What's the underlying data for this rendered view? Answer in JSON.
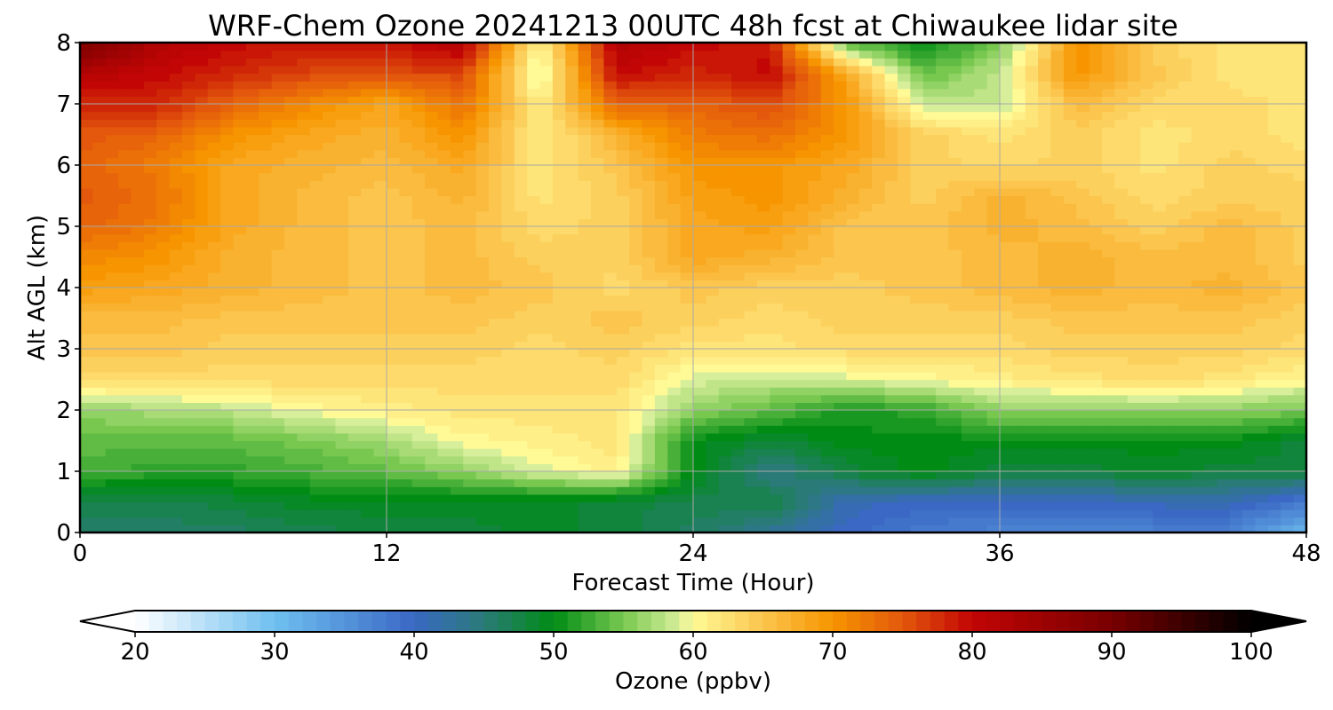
{
  "chart_data": {
    "type": "heatmap",
    "title": "WRF-Chem Ozone  20241213 00UTC 48h fcst at Chiwaukee lidar site",
    "xlabel": "Forecast Time (Hour)",
    "ylabel": "Alt AGL (km)",
    "xlim": [
      0,
      48
    ],
    "ylim": [
      0,
      8
    ],
    "xticks": [
      0,
      12,
      24,
      36,
      48
    ],
    "yticks": [
      0,
      1,
      2,
      3,
      4,
      5,
      6,
      7,
      8
    ],
    "grid": true,
    "x_hours": [
      0,
      3,
      6,
      9,
      12,
      15,
      18,
      21,
      24,
      27,
      30,
      33,
      36,
      39,
      42,
      45,
      48
    ],
    "alt_km": [
      0,
      0.5,
      1,
      1.5,
      2,
      2.5,
      3,
      3.5,
      4,
      4.5,
      5,
      5.5,
      6,
      6.5,
      7,
      7.5,
      8
    ],
    "values": [
      [
        46,
        46,
        46,
        47,
        48,
        48,
        49,
        48,
        46,
        43,
        40,
        38,
        37,
        37,
        37,
        37,
        31
      ],
      [
        47,
        47,
        48,
        49,
        49,
        49,
        49,
        48,
        47,
        48,
        41,
        40,
        40,
        40,
        41,
        41,
        38
      ],
      [
        53,
        52,
        52,
        53,
        54,
        56,
        59,
        61,
        50,
        44,
        48,
        50,
        48,
        48,
        49,
        48,
        48
      ],
      [
        54,
        54,
        54,
        55,
        57,
        60,
        61,
        62,
        50,
        48,
        50,
        50,
        50,
        50,
        50,
        50,
        48
      ],
      [
        56,
        57,
        58,
        60,
        61,
        62,
        62,
        62,
        56,
        54,
        51,
        52,
        56,
        56,
        56,
        56,
        55
      ],
      [
        63,
        63,
        63,
        63,
        63,
        63,
        63,
        63,
        59,
        58,
        59,
        60,
        61,
        62,
        63,
        62,
        60
      ],
      [
        65,
        65,
        64,
        64,
        64,
        64,
        63,
        64,
        62,
        62,
        63,
        63,
        63,
        64,
        64,
        64,
        63
      ],
      [
        66,
        66,
        65,
        65,
        65,
        65,
        64,
        65,
        64,
        63,
        64,
        64,
        64,
        65,
        65,
        65,
        64
      ],
      [
        69,
        68,
        67,
        66,
        65,
        66,
        65,
        63,
        65,
        64,
        64,
        65,
        66,
        67,
        66,
        67,
        65
      ],
      [
        71,
        70,
        67,
        66,
        65,
        66,
        64,
        64,
        68,
        67,
        65,
        65,
        66,
        67,
        66,
        66,
        64
      ],
      [
        74,
        72,
        68,
        66,
        65,
        66,
        63,
        64,
        68,
        69,
        65,
        65,
        67,
        66,
        64,
        66,
        64
      ],
      [
        75,
        73,
        68,
        66,
        65,
        67,
        62,
        64,
        69,
        70,
        67,
        64,
        67,
        65,
        63,
        64,
        64
      ],
      [
        74,
        72,
        68,
        67,
        66,
        68,
        62,
        65,
        70,
        70,
        68,
        64,
        63,
        64,
        62,
        64,
        63
      ],
      [
        75,
        74,
        70,
        68,
        67,
        70,
        61,
        67,
        72,
        73,
        70,
        64,
        62,
        64,
        62,
        63,
        62
      ],
      [
        78,
        78,
        74,
        71,
        68,
        73,
        61,
        74,
        74,
        76,
        70,
        58,
        58,
        66,
        63,
        63,
        62
      ],
      [
        82,
        80,
        78,
        76,
        76,
        76,
        58,
        80,
        78,
        80,
        68,
        54,
        58,
        70,
        65,
        62,
        62
      ],
      [
        90,
        82,
        80,
        79,
        79,
        82,
        60,
        82,
        80,
        79,
        54,
        50,
        55,
        70,
        64,
        62,
        62
      ]
    ],
    "colorbar": {
      "label": "Ozone  (ppbv)",
      "ticks": [
        20,
        30,
        40,
        50,
        60,
        70,
        80,
        90,
        100
      ],
      "range": [
        20,
        100
      ],
      "extend": "both",
      "colormap_stops": [
        {
          "v": 20,
          "c": "#ffffff"
        },
        {
          "v": 30,
          "c": "#6fc0f0"
        },
        {
          "v": 40,
          "c": "#3a68c4"
        },
        {
          "v": 45,
          "c": "#2a7b78"
        },
        {
          "v": 50,
          "c": "#008c14"
        },
        {
          "v": 55,
          "c": "#78c850"
        },
        {
          "v": 59,
          "c": "#d7ee9a"
        },
        {
          "v": 60,
          "c": "#fffa96"
        },
        {
          "v": 65,
          "c": "#fbc54e"
        },
        {
          "v": 70,
          "c": "#f79500"
        },
        {
          "v": 75,
          "c": "#e3580c"
        },
        {
          "v": 80,
          "c": "#c20505"
        },
        {
          "v": 90,
          "c": "#780000"
        },
        {
          "v": 100,
          "c": "#000000"
        }
      ]
    }
  }
}
